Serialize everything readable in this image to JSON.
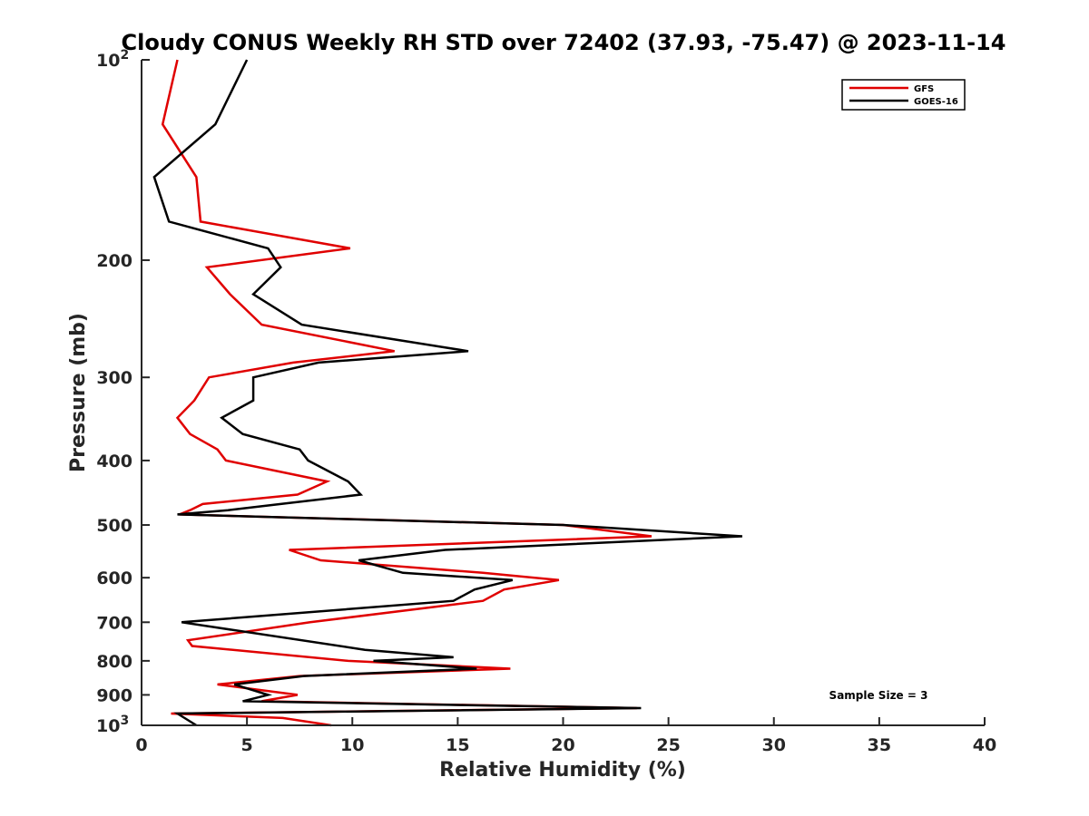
{
  "chart_data": {
    "type": "line",
    "title": "Cloudy CONUS Weekly RH STD over 72402 (37.93, -75.47) @ 2023-11-14",
    "xlabel": "Relative Humidity (%)",
    "ylabel": "Pressure (mb)",
    "xlim": [
      0,
      40
    ],
    "ylim": [
      100,
      1000
    ],
    "y_scale": "log",
    "y_reversed": true,
    "x_ticks": [
      "0",
      "5",
      "10",
      "15",
      "20",
      "25",
      "30",
      "35",
      "40"
    ],
    "y_ticks": [
      {
        "value": 100,
        "label": "10",
        "exp": "2"
      },
      {
        "value": 200,
        "label": "200"
      },
      {
        "value": 300,
        "label": "300"
      },
      {
        "value": 400,
        "label": "400"
      },
      {
        "value": 500,
        "label": "500"
      },
      {
        "value": 600,
        "label": "600"
      },
      {
        "value": 700,
        "label": "700"
      },
      {
        "value": 800,
        "label": "800"
      },
      {
        "value": 900,
        "label": "900"
      },
      {
        "value": 1000,
        "label": "10",
        "exp": "3"
      }
    ],
    "grid": false,
    "legend_position": "top-right",
    "annotation": "Sample Size = 3",
    "series": [
      {
        "name": "GFS",
        "color": "#e00000",
        "points": [
          [
            1.7,
            100
          ],
          [
            1.0,
            125
          ],
          [
            2.6,
            150
          ],
          [
            2.8,
            175
          ],
          [
            9.9,
            192
          ],
          [
            3.1,
            205
          ],
          [
            4.2,
            225
          ],
          [
            5.7,
            250
          ],
          [
            12.0,
            274
          ],
          [
            7.2,
            285
          ],
          [
            3.2,
            300
          ],
          [
            2.5,
            325
          ],
          [
            1.7,
            345
          ],
          [
            2.3,
            365
          ],
          [
            3.6,
            385
          ],
          [
            4.0,
            400
          ],
          [
            8.8,
            430
          ],
          [
            7.4,
            450
          ],
          [
            2.9,
            465
          ],
          [
            2.3,
            475
          ],
          [
            1.8,
            482
          ],
          [
            20.0,
            500
          ],
          [
            24.2,
            520
          ],
          [
            7.0,
            545
          ],
          [
            8.5,
            565
          ],
          [
            16.2,
            590
          ],
          [
            19.8,
            605
          ],
          [
            17.2,
            625
          ],
          [
            16.2,
            650
          ],
          [
            8.0,
            700
          ],
          [
            2.2,
            745
          ],
          [
            2.4,
            760
          ],
          [
            9.8,
            800
          ],
          [
            17.5,
            822
          ],
          [
            7.5,
            843
          ],
          [
            3.6,
            868
          ],
          [
            7.4,
            900
          ],
          [
            5.7,
            920
          ],
          [
            23.5,
            942
          ],
          [
            1.4,
            960
          ],
          [
            6.7,
            975
          ],
          [
            9.0,
            1000
          ]
        ]
      },
      {
        "name": "GOES-16",
        "color": "#000000",
        "points": [
          [
            5.0,
            100
          ],
          [
            3.5,
            125
          ],
          [
            0.6,
            150
          ],
          [
            1.3,
            175
          ],
          [
            6.0,
            192
          ],
          [
            6.6,
            205
          ],
          [
            5.3,
            225
          ],
          [
            7.6,
            250
          ],
          [
            15.5,
            274
          ],
          [
            8.4,
            285
          ],
          [
            5.3,
            300
          ],
          [
            5.3,
            325
          ],
          [
            3.8,
            345
          ],
          [
            4.8,
            365
          ],
          [
            7.5,
            385
          ],
          [
            7.9,
            400
          ],
          [
            9.8,
            430
          ],
          [
            10.4,
            450
          ],
          [
            6.6,
            465
          ],
          [
            4.1,
            475
          ],
          [
            1.7,
            482
          ],
          [
            20.0,
            500
          ],
          [
            28.5,
            520
          ],
          [
            14.4,
            545
          ],
          [
            10.3,
            565
          ],
          [
            12.4,
            590
          ],
          [
            17.6,
            605
          ],
          [
            15.8,
            625
          ],
          [
            14.8,
            650
          ],
          [
            1.9,
            700
          ],
          [
            10.6,
            770
          ],
          [
            14.8,
            790
          ],
          [
            11.0,
            800
          ],
          [
            15.9,
            822
          ],
          [
            7.7,
            843
          ],
          [
            4.4,
            868
          ],
          [
            6.0,
            900
          ],
          [
            4.8,
            920
          ],
          [
            23.7,
            942
          ],
          [
            1.7,
            960
          ],
          [
            2.6,
            1000
          ]
        ]
      }
    ]
  }
}
